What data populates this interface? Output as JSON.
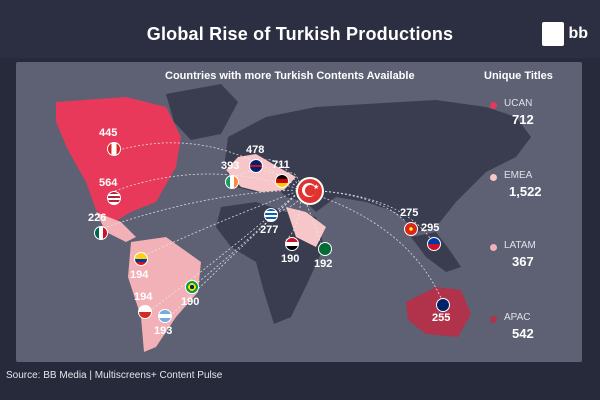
{
  "header": {
    "title": "Global Rise of Turkish Productions",
    "logo_text": "bb"
  },
  "subtitle": "Countries with more Turkish Contents Available",
  "legend": {
    "title": "Unique Titles",
    "regions": [
      {
        "name": "UCAN",
        "value": "712",
        "color": "#e8395a"
      },
      {
        "name": "EMEA",
        "value": "1,522",
        "color": "#f7c6c9"
      },
      {
        "name": "LATAM",
        "value": "367",
        "color": "#f2b1b6"
      },
      {
        "name": "APAC",
        "value": "542",
        "color": "#b0334b"
      }
    ]
  },
  "markers": [
    {
      "country": "Canada",
      "flag_icon": "canada-flag-icon",
      "value": "445"
    },
    {
      "country": "United States",
      "flag_icon": "usa-flag-icon",
      "value": "564"
    },
    {
      "country": "Mexico",
      "flag_icon": "mexico-flag-icon",
      "value": "226"
    },
    {
      "country": "Colombia",
      "flag_icon": "colombia-flag-icon",
      "value": "194"
    },
    {
      "country": "Brazil",
      "flag_icon": "brazil-flag-icon",
      "value": "190"
    },
    {
      "country": "Chile",
      "flag_icon": "chile-flag-icon",
      "value": "194"
    },
    {
      "country": "Argentina",
      "flag_icon": "argentina-flag-icon",
      "value": "193"
    },
    {
      "country": "Ireland",
      "flag_icon": "ireland-flag-icon",
      "value": "393"
    },
    {
      "country": "United Kingdom",
      "flag_icon": "uk-flag-icon",
      "value": "478"
    },
    {
      "country": "Germany",
      "flag_icon": "germany-flag-icon",
      "value": "711"
    },
    {
      "country": "Greece",
      "flag_icon": "greece-flag-icon",
      "value": "277"
    },
    {
      "country": "Egypt",
      "flag_icon": "egypt-flag-icon",
      "value": "190"
    },
    {
      "country": "Saudi Arabia",
      "flag_icon": "saudi-flag-icon",
      "value": "192"
    },
    {
      "country": "Vietnam",
      "flag_icon": "vietnam-flag-icon",
      "value": "275"
    },
    {
      "country": "Philippines",
      "flag_icon": "philippines-flag-icon",
      "value": "295"
    },
    {
      "country": "Australia",
      "flag_icon": "australia-flag-icon",
      "value": "255"
    }
  ],
  "colors": {
    "ucan": "#e8395a",
    "emea": "#f7c6c9",
    "latam": "#f2b1b6",
    "apac": "#b0334b",
    "land": "#3a3d4f",
    "sea": "#5d6173"
  },
  "source": "Source: BB Media | Multiscreens+ Content Pulse"
}
